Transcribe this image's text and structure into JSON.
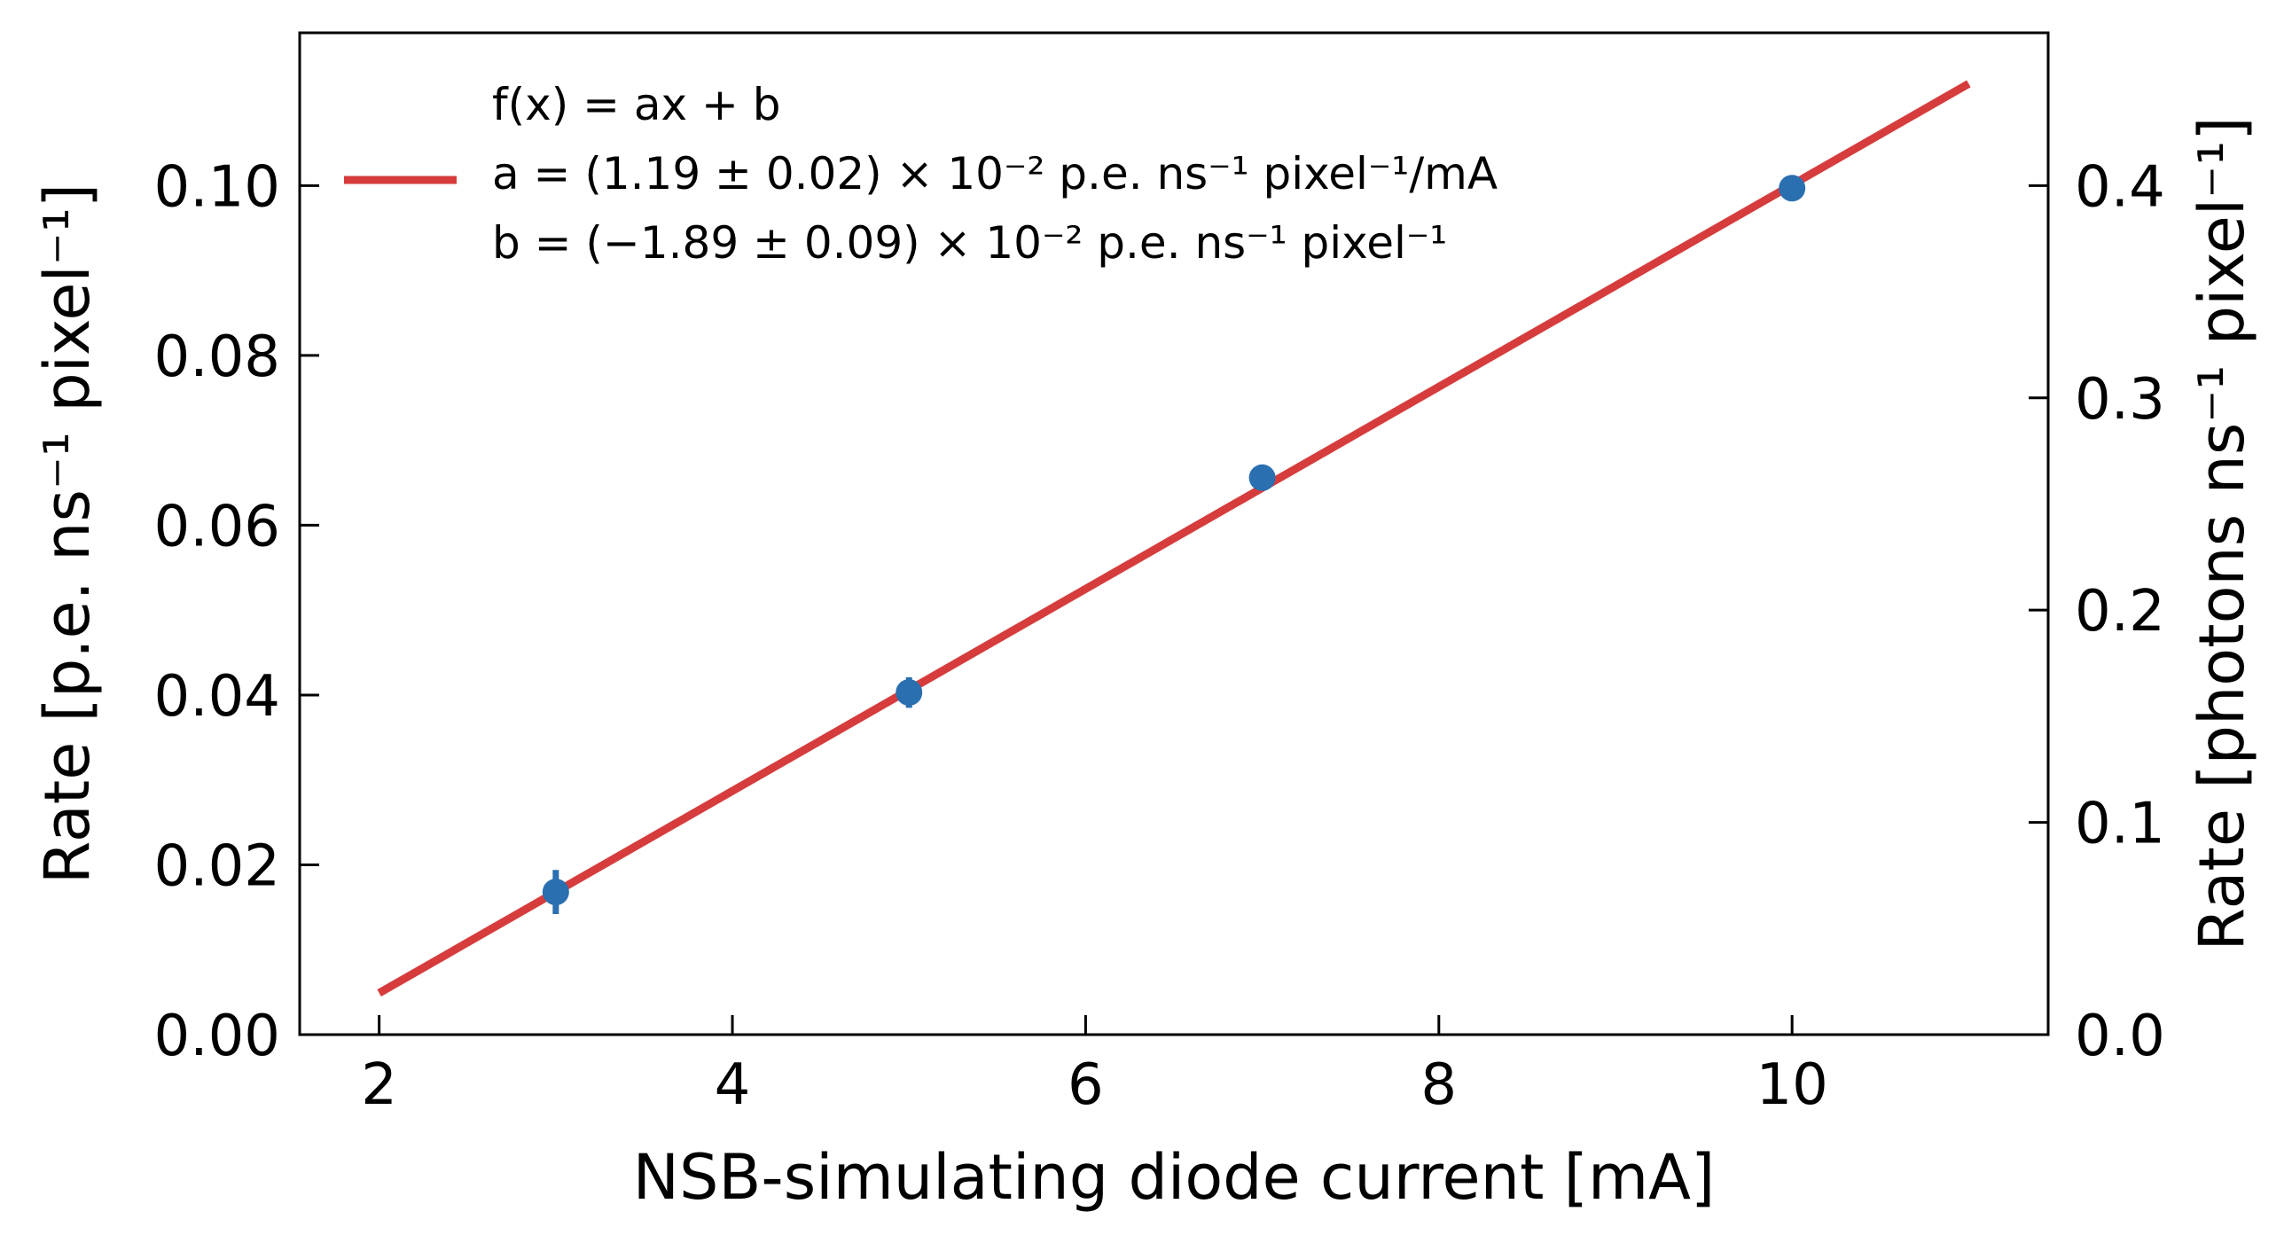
{
  "chart_data": {
    "type": "scatter",
    "xlabel": "NSB-simulating diode current [mA]",
    "ylabel_left": "Rate [p.e. ns⁻¹ pixel⁻¹]",
    "ylabel_right": "Rate [photons ns⁻¹ pixel⁻¹]",
    "xlim": [
      1.55,
      11.45
    ],
    "ylim_left": [
      0.0,
      0.118
    ],
    "ylim_right": [
      0.0,
      0.472
    ],
    "x_ticks": [
      2,
      4,
      6,
      8,
      10
    ],
    "x_tick_labels": [
      "2",
      "4",
      "6",
      "8",
      "10"
    ],
    "y_left_ticks": [
      0.0,
      0.02,
      0.04,
      0.06,
      0.08,
      0.1
    ],
    "y_left_tick_labels": [
      "0.00",
      "0.02",
      "0.04",
      "0.06",
      "0.08",
      "0.10"
    ],
    "y_right_ticks": [
      0.0,
      0.1,
      0.2,
      0.3,
      0.4
    ],
    "y_right_tick_labels": [
      "0.0",
      "0.1",
      "0.2",
      "0.3",
      "0.4"
    ],
    "grid": false,
    "legend_position": "top-left",
    "series": [
      {
        "kind": "errorbar",
        "color": "#2a6fb0",
        "x": [
          3,
          5,
          7,
          10
        ],
        "y": [
          0.0168,
          0.0403,
          0.0656,
          0.0997
        ],
        "yerr": [
          0.0026,
          0.0018,
          0.0013,
          0.0008
        ]
      },
      {
        "kind": "fit-line",
        "name_lines": [
          "f(x) = ax + b",
          "a = (1.19 ± 0.02) × 10⁻² p.e. ns⁻¹ pixel⁻¹/mA",
          "b = (−1.89 ± 0.09) × 10⁻² p.e. ns⁻¹ pixel⁻¹"
        ],
        "color": "#d63c3c",
        "x": [
          2,
          11
        ],
        "y": [
          0.0049,
          0.112
        ]
      }
    ]
  }
}
